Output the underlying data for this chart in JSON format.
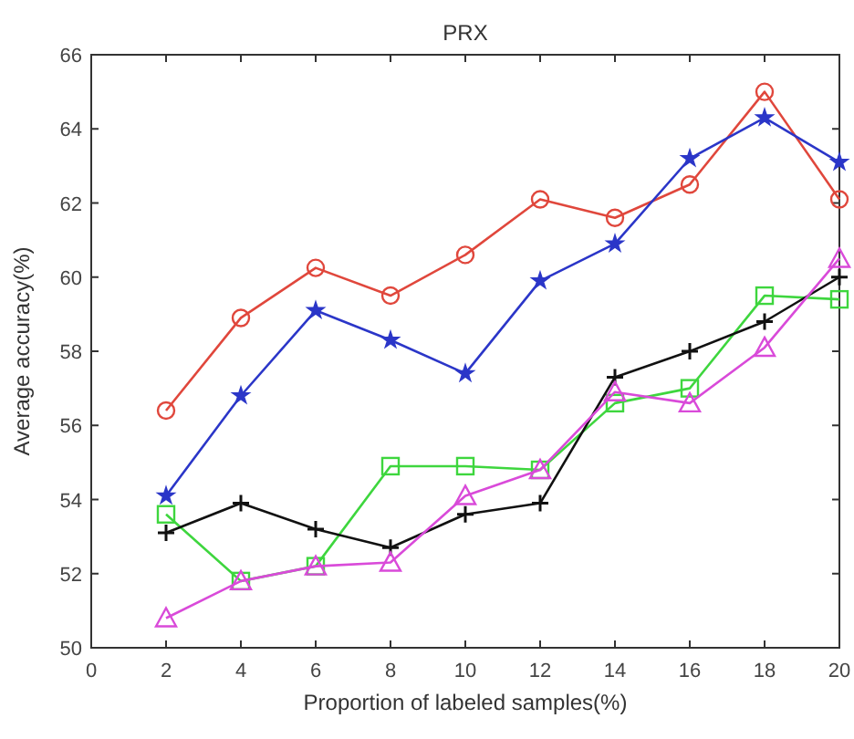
{
  "chart_data": {
    "type": "line",
    "title": "PRX",
    "xlabel": "Proportion of labeled samples(%)",
    "ylabel": "Average accuracy(%)",
    "x": [
      2,
      4,
      6,
      8,
      10,
      12,
      14,
      16,
      18,
      20
    ],
    "xlim": [
      0,
      20
    ],
    "xticks": [
      0,
      2,
      4,
      6,
      8,
      10,
      12,
      14,
      16,
      18,
      20
    ],
    "ylim": [
      50,
      66
    ],
    "yticks": [
      50,
      52,
      54,
      56,
      58,
      60,
      62,
      64,
      66
    ],
    "grid": false,
    "line_style": "solid",
    "series": [
      {
        "color": "#e0473c",
        "marker": "circle",
        "values": [
          56.4,
          58.9,
          60.25,
          59.5,
          60.6,
          62.1,
          61.6,
          62.5,
          65.0,
          62.1
        ]
      },
      {
        "color": "#2b36c8",
        "marker": "star",
        "values": [
          54.1,
          56.8,
          59.1,
          58.3,
          57.4,
          59.9,
          60.9,
          63.2,
          64.3,
          63.1
        ]
      },
      {
        "color": "#3ed63e",
        "marker": "square",
        "values": [
          53.6,
          51.8,
          52.2,
          54.9,
          54.9,
          54.8,
          56.6,
          57.0,
          59.5,
          59.4
        ]
      },
      {
        "color": "#111111",
        "marker": "cross",
        "values": [
          53.1,
          53.9,
          53.2,
          52.7,
          53.6,
          53.9,
          57.3,
          58.0,
          58.8,
          60.0
        ]
      },
      {
        "color": "#d94ad9",
        "marker": "triangle",
        "values": [
          50.8,
          51.8,
          52.2,
          52.3,
          54.1,
          54.8,
          56.9,
          56.6,
          58.1,
          60.5
        ]
      }
    ]
  }
}
